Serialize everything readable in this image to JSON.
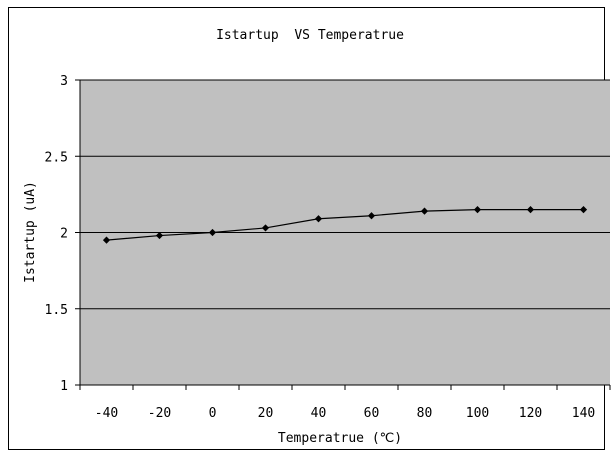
{
  "chart_data": {
    "type": "line",
    "title": "Istartup  VS Temperatrue",
    "xlabel": "Temperatrue (℃)",
    "ylabel": "Istartup (uA)",
    "categories": [
      "-40",
      "-20",
      "0",
      "20",
      "40",
      "60",
      "80",
      "100",
      "120",
      "140"
    ],
    "series": [
      {
        "values": [
          1.95,
          1.98,
          2.0,
          2.03,
          2.09,
          2.11,
          2.14,
          2.15,
          2.15,
          2.15
        ]
      }
    ],
    "ylim": [
      1,
      3
    ],
    "yticks": [
      "1",
      "1.5",
      "2",
      "2.5",
      "3"
    ],
    "grid": true,
    "legend": "none",
    "colors": {
      "plot_area": "#c0c0c0",
      "line": "#000000",
      "marker": "#000000"
    }
  }
}
